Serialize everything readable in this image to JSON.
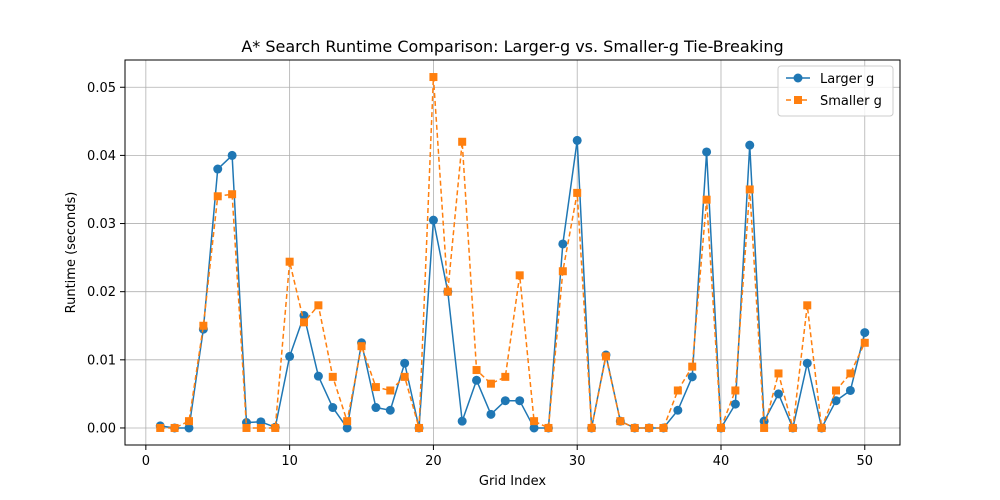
{
  "chart_data": {
    "type": "line",
    "title": "A* Search Runtime Comparison: Larger-g vs. Smaller-g Tie-Breaking",
    "xlabel": "Grid Index",
    "ylabel": "Runtime (seconds)",
    "xlim": [
      -1.45,
      52.45
    ],
    "ylim": [
      -0.0025,
      0.054
    ],
    "xticks": [
      0,
      10,
      20,
      30,
      40,
      50
    ],
    "yticks": [
      0.0,
      0.01,
      0.02,
      0.03,
      0.04,
      0.05
    ],
    "xtick_labels": [
      "0",
      "10",
      "20",
      "30",
      "40",
      "50"
    ],
    "ytick_labels": [
      "0.00",
      "0.01",
      "0.02",
      "0.03",
      "0.04",
      "0.05"
    ],
    "grid": true,
    "legend_position": "top-right",
    "x": [
      1,
      2,
      3,
      4,
      5,
      6,
      7,
      8,
      9,
      10,
      11,
      12,
      13,
      14,
      15,
      16,
      17,
      18,
      19,
      20,
      21,
      22,
      23,
      24,
      25,
      26,
      27,
      28,
      29,
      30,
      31,
      32,
      33,
      34,
      35,
      36,
      37,
      38,
      39,
      40,
      41,
      42,
      43,
      44,
      45,
      46,
      47,
      48,
      49,
      50
    ],
    "series": [
      {
        "name": "Larger g",
        "color": "#1f77b4",
        "marker": "circle",
        "linestyle": "solid",
        "values": [
          0.0003,
          0.0,
          0.0,
          0.0145,
          0.038,
          0.04,
          0.0008,
          0.0009,
          0.0001,
          0.0105,
          0.0165,
          0.0076,
          0.003,
          0.0,
          0.0125,
          0.003,
          0.0026,
          0.0095,
          0.0,
          0.0305,
          0.02,
          0.001,
          0.007,
          0.002,
          0.004,
          0.004,
          0.0,
          0.0,
          0.027,
          0.0422,
          0.0,
          0.0107,
          0.001,
          0.0,
          0.0,
          0.0,
          0.0026,
          0.0075,
          0.0405,
          0.0,
          0.0035,
          0.0415,
          0.001,
          0.005,
          0.0,
          0.0095,
          0.0,
          0.004,
          0.0055,
          0.014
        ]
      },
      {
        "name": "Smaller g",
        "color": "#ff7f0e",
        "marker": "square",
        "linestyle": "dashed",
        "values": [
          0.0,
          0.0,
          0.001,
          0.015,
          0.034,
          0.0343,
          0.0,
          0.0,
          0.0,
          0.0244,
          0.0155,
          0.018,
          0.0075,
          0.001,
          0.012,
          0.006,
          0.0055,
          0.0075,
          0.0,
          0.0515,
          0.02,
          0.042,
          0.0085,
          0.0065,
          0.0075,
          0.0224,
          0.001,
          0.0,
          0.023,
          0.0345,
          0.0,
          0.0105,
          0.001,
          0.0,
          0.0,
          0.0,
          0.0055,
          0.009,
          0.0335,
          0.0,
          0.0055,
          0.035,
          0.0,
          0.008,
          0.0,
          0.018,
          0.0,
          0.0055,
          0.008,
          0.0125
        ]
      }
    ]
  }
}
